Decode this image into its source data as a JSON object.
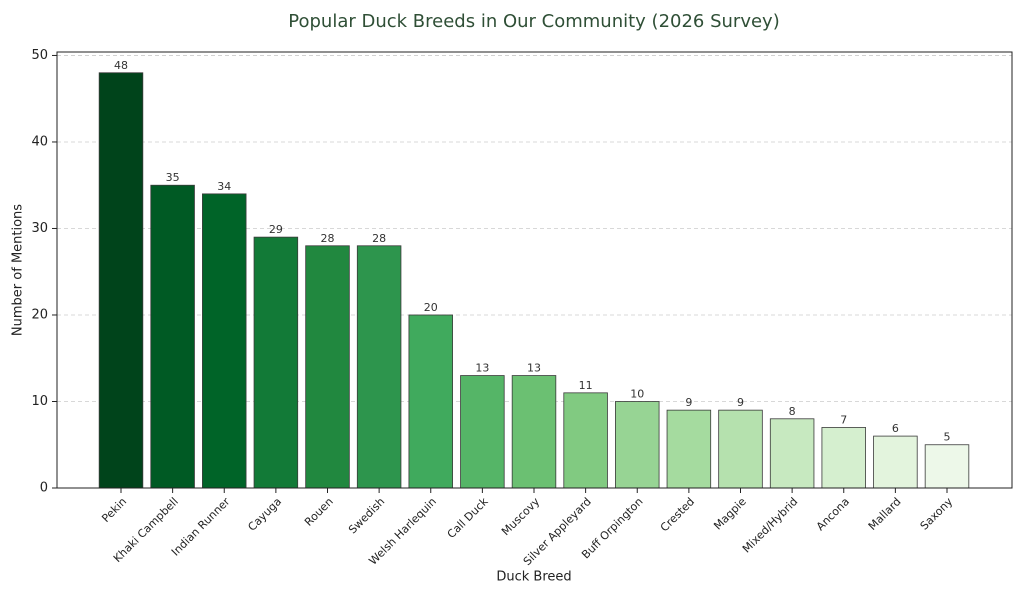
{
  "chart_data": {
    "type": "bar",
    "title": "Popular Duck Breeds in Our Community (2026 Survey)",
    "x_label": "Duck Breed",
    "y_label": "Number of Mentions",
    "categories": [
      "Pekin",
      "Khaki Campbell",
      "Indian Runner",
      "Cayuga",
      "Rouen",
      "Swedish",
      "Welsh Harlequin",
      "Call Duck",
      "Muscovy",
      "Silver Appleyard",
      "Buff Orpington",
      "Crested",
      "Magpie",
      "Mixed/Hybrid",
      "Ancona",
      "Mallard",
      "Saxony"
    ],
    "values": [
      48,
      35,
      34,
      29,
      28,
      28,
      20,
      13,
      13,
      11,
      10,
      9,
      9,
      8,
      7,
      6,
      5
    ],
    "colors": [
      "#00441b",
      "#005a24",
      "#006428",
      "#127a37",
      "#21883f",
      "#2d954d",
      "#40aa5d",
      "#55b567",
      "#6bc072",
      "#81ca81",
      "#97d494",
      "#a5db9f",
      "#b5e1ae",
      "#c7e9c0",
      "#d5efcf",
      "#e3f4dd",
      "#edf8e9"
    ],
    "ylim": [
      0,
      50.4
    ],
    "yticks": [
      0,
      10,
      20,
      30,
      40,
      50
    ],
    "grid": true
  }
}
